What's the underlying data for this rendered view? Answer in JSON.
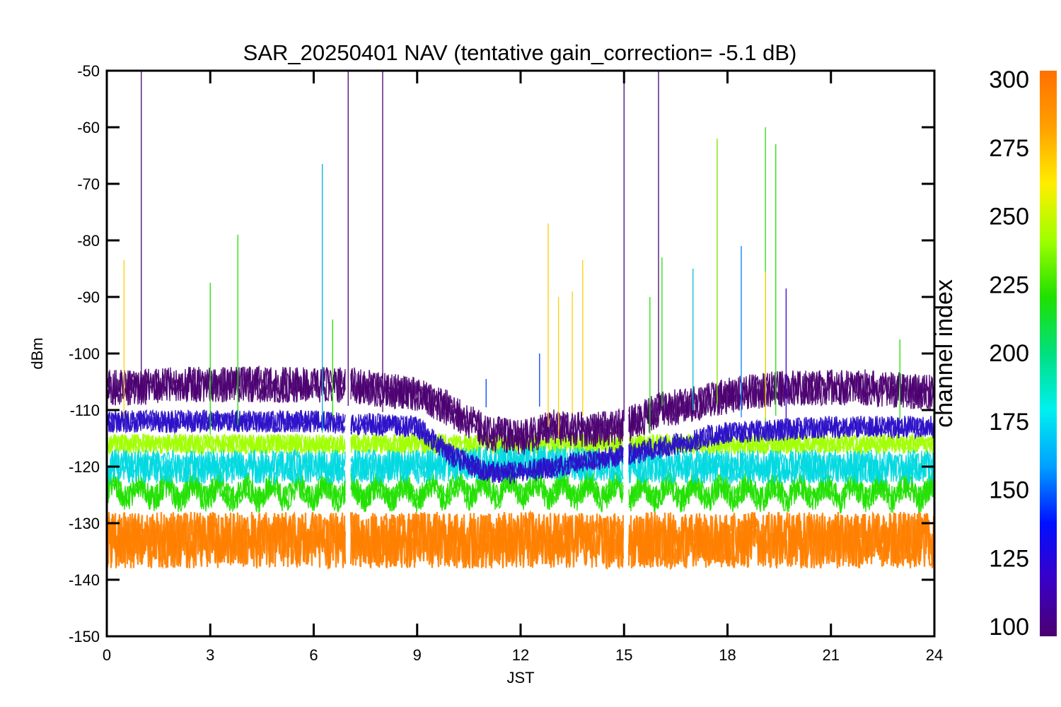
{
  "chart_data": {
    "type": "line",
    "title": "SAR_20250401 NAV (tentative gain_correction= -5.1 dB)",
    "xlabel": "JST",
    "ylabel": "dBm",
    "xlim": [
      0,
      24
    ],
    "ylim": [
      -150,
      -50
    ],
    "xticks": [
      "0",
      "3",
      "6",
      "9",
      "12",
      "15",
      "18",
      "21",
      "24"
    ],
    "yticks": [
      "-50",
      "-60",
      "-70",
      "-80",
      "-90",
      "-100",
      "-110",
      "-120",
      "-130",
      "-140",
      "-150"
    ],
    "colorbar": {
      "title": "channel index",
      "range": [
        100,
        300
      ],
      "ticks": [
        "300",
        "275",
        "250",
        "225",
        "200",
        "175",
        "150",
        "125",
        "100"
      ],
      "colors": [
        "#4b0070",
        "#3a00c8",
        "#0010ff",
        "#00a0ff",
        "#00f0f0",
        "#00e080",
        "#20e000",
        "#a0ff00",
        "#ffee00",
        "#ffa000",
        "#ff7000"
      ]
    },
    "gaps_jst": [
      7.0,
      15.05
    ],
    "series": [
      {
        "channel_index": 110,
        "color": "#4b0070",
        "x": [
          0,
          1,
          2,
          3,
          4,
          5,
          6,
          7,
          8,
          9,
          10,
          11,
          12,
          13,
          14,
          15,
          16,
          17,
          18,
          19,
          20,
          21,
          22,
          23,
          24
        ],
        "values": [
          -106,
          -106,
          -105.5,
          -105.5,
          -105.5,
          -105.5,
          -105.5,
          -105.5,
          -106.5,
          -107,
          -110,
          -114,
          -115,
          -113,
          -113.5,
          -113,
          -110,
          -109,
          -107.5,
          -106.5,
          -106,
          -106,
          -106,
          -106.5,
          -107
        ]
      },
      {
        "channel_index": 140,
        "color": "#2a10c8",
        "x": [
          0,
          3,
          6,
          9,
          10,
          11,
          12,
          13,
          14,
          15,
          18,
          21,
          24
        ],
        "values": [
          -112,
          -112,
          -112,
          -113,
          -118,
          -121,
          -121,
          -120,
          -119,
          -118,
          -114,
          -113,
          -113
        ]
      },
      {
        "channel_index": 180,
        "color": "#00d8e0",
        "x": [
          0,
          3,
          6,
          9,
          12,
          15,
          18,
          21,
          24
        ],
        "values": [
          -120,
          -120,
          -120,
          -120,
          -119,
          -120,
          -120,
          -120,
          -120
        ]
      },
      {
        "channel_index": 230,
        "color": "#20e000",
        "x": [
          0,
          3,
          6,
          9,
          12,
          15,
          18,
          21,
          24
        ],
        "values": [
          -124.5,
          -124.5,
          -124.5,
          -124.5,
          -124,
          -124.5,
          -124.5,
          -124.5,
          -124.5
        ]
      },
      {
        "channel_index": 260,
        "color": "#a0ff00",
        "x": [
          0,
          3,
          6,
          9,
          12,
          15,
          18,
          21,
          24
        ],
        "values": [
          -116,
          -116,
          -116,
          -116,
          -116,
          -116,
          -116,
          -116,
          -116
        ]
      },
      {
        "channel_index": 295,
        "color": "#ff8000",
        "x": [
          0,
          3,
          6,
          9,
          12,
          15,
          18,
          21,
          24
        ],
        "values": [
          -133,
          -133,
          -133,
          -133,
          -133,
          -133,
          -133,
          -133,
          -133
        ]
      }
    ],
    "spikes": [
      {
        "x": 0.5,
        "y": -83.5,
        "color": "#ffd000"
      },
      {
        "x": 1.0,
        "y": -50,
        "color": "#4b0070"
      },
      {
        "x": 3.0,
        "y": -87.5,
        "color": "#20e000"
      },
      {
        "x": 3.8,
        "y": -79,
        "color": "#20e000"
      },
      {
        "x": 6.25,
        "y": -66.5,
        "color": "#00b0e0"
      },
      {
        "x": 6.55,
        "y": -94,
        "color": "#20e000"
      },
      {
        "x": 7.0,
        "y": -50,
        "color": "#4b0070"
      },
      {
        "x": 8.0,
        "y": -50,
        "color": "#4b0070"
      },
      {
        "x": 11.0,
        "y": -104.5,
        "color": "#0040ff"
      },
      {
        "x": 12.55,
        "y": -100,
        "color": "#0040ff"
      },
      {
        "x": 12.8,
        "y": -77,
        "color": "#ffd000"
      },
      {
        "x": 13.1,
        "y": -90,
        "color": "#ffd000"
      },
      {
        "x": 13.5,
        "y": -89,
        "color": "#ffd000"
      },
      {
        "x": 13.8,
        "y": -83.5,
        "color": "#ffd000"
      },
      {
        "x": 15.0,
        "y": -50,
        "color": "#4b0070"
      },
      {
        "x": 15.75,
        "y": -90,
        "color": "#20e000"
      },
      {
        "x": 16.0,
        "y": -50,
        "color": "#4b0070"
      },
      {
        "x": 16.1,
        "y": -83,
        "color": "#20e000"
      },
      {
        "x": 17.0,
        "y": -85,
        "color": "#00c0d0"
      },
      {
        "x": 17.7,
        "y": -62,
        "color": "#80e000"
      },
      {
        "x": 18.4,
        "y": -81,
        "color": "#0080ff"
      },
      {
        "x": 19.1,
        "y": -60,
        "color": "#20e000"
      },
      {
        "x": 19.1,
        "y": -85.5,
        "color": "#ffd000"
      },
      {
        "x": 19.4,
        "y": -63,
        "color": "#20e000"
      },
      {
        "x": 19.7,
        "y": -88.5,
        "color": "#3a00c8"
      },
      {
        "x": 23.0,
        "y": -97.5,
        "color": "#20e000"
      }
    ]
  }
}
